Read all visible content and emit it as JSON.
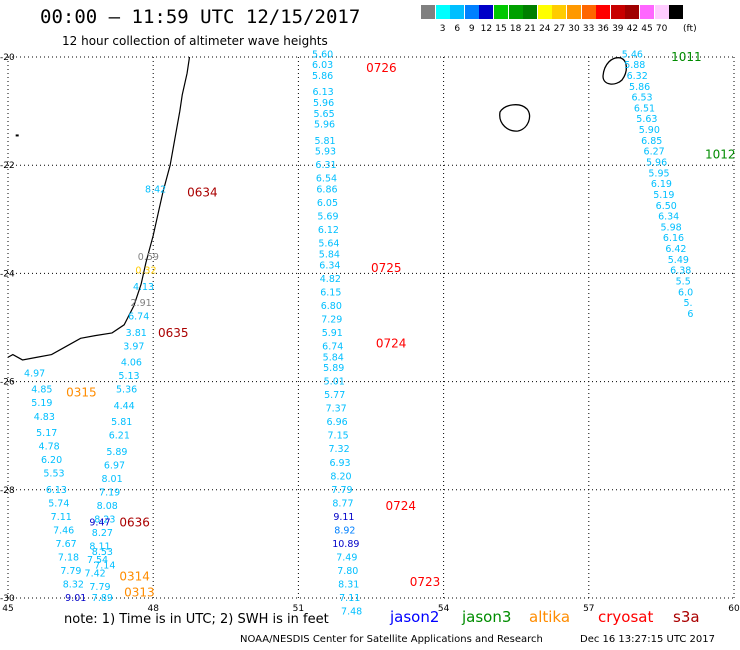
{
  "header": {
    "title": "00:00 – 11:59 UTC 12/15/2017",
    "subtitle": "12 hour collection of altimeter wave heights"
  },
  "color_scale": {
    "unit_label": "(ft)",
    "bins": [
      {
        "label": "",
        "color": "#808080"
      },
      {
        "label": "3",
        "color": "#00ffff"
      },
      {
        "label": "6",
        "color": "#00bfff"
      },
      {
        "label": "9",
        "color": "#0080ff"
      },
      {
        "label": "12",
        "color": "#0000c8"
      },
      {
        "label": "15",
        "color": "#00c800"
      },
      {
        "label": "18",
        "color": "#00a000"
      },
      {
        "label": "21",
        "color": "#008000"
      },
      {
        "label": "24",
        "color": "#ffff00"
      },
      {
        "label": "27",
        "color": "#ffcc00"
      },
      {
        "label": "30",
        "color": "#ff9900"
      },
      {
        "label": "33",
        "color": "#ff6600"
      },
      {
        "label": "36",
        "color": "#ff0000"
      },
      {
        "label": "39",
        "color": "#c80000"
      },
      {
        "label": "42",
        "color": "#a00000"
      },
      {
        "label": "45",
        "color": "#ff66ff"
      },
      {
        "label": "70",
        "color": "#ffccff"
      },
      {
        "label": "",
        "color": "#000000"
      }
    ]
  },
  "axes": {
    "lon_ticks": [
      "45",
      "48",
      "51",
      "54",
      "57",
      "60"
    ],
    "lat_ticks": [
      "-20",
      "-22",
      "-24",
      "-26",
      "-28",
      "-30"
    ]
  },
  "passes": [
    {
      "label": "0634",
      "color": "#aa0000",
      "lon": 48.7,
      "lat": -22.5
    },
    {
      "label": "0635",
      "color": "#aa0000",
      "lon": 48.1,
      "lat": -25.1
    },
    {
      "label": "0636",
      "color": "#aa0000",
      "lon": 47.3,
      "lat": -28.6
    },
    {
      "label": "0315",
      "color": "#ff8c00",
      "lon": 46.2,
      "lat": -26.2
    },
    {
      "label": "0314",
      "color": "#ff8c00",
      "lon": 47.3,
      "lat": -29.6
    },
    {
      "label": "0313",
      "color": "#ff8c00",
      "lon": 47.4,
      "lat": -29.9
    },
    {
      "label": "0726",
      "color": "#ff0000",
      "lon": 52.4,
      "lat": -20.2
    },
    {
      "label": "0725",
      "color": "#ff0000",
      "lon": 52.5,
      "lat": -23.9
    },
    {
      "label": "0724",
      "color": "#ff0000",
      "lon": 52.6,
      "lat": -25.3
    },
    {
      "label": "0724",
      "color": "#ff0000",
      "lon": 52.8,
      "lat": -28.3
    },
    {
      "label": "0723",
      "color": "#ff0000",
      "lon": 53.3,
      "lat": -29.7
    },
    {
      "label": "1011",
      "color": "#008c00",
      "lon": 58.7,
      "lat": -20.0
    },
    {
      "label": "1012",
      "color": "#008c00",
      "lon": 59.4,
      "lat": -21.8
    }
  ],
  "tracks": [
    {
      "name": "cryosat-0725",
      "points": [
        {
          "lon": 51.5,
          "lat": -19.95,
          "v": "5.60",
          "c": "#00bfff"
        },
        {
          "lon": 51.5,
          "lat": -20.15,
          "v": "6.03",
          "c": "#00bfff"
        },
        {
          "lon": 51.5,
          "lat": -20.35,
          "v": "5.86",
          "c": "#00bfff"
        },
        {
          "lon": 51.51,
          "lat": -20.65,
          "v": "6.13",
          "c": "#00bfff"
        },
        {
          "lon": 51.52,
          "lat": -20.85,
          "v": "5.96",
          "c": "#00bfff"
        },
        {
          "lon": 51.53,
          "lat": -21.05,
          "v": "5.65",
          "c": "#00bfff"
        },
        {
          "lon": 51.54,
          "lat": -21.25,
          "v": "5.96",
          "c": "#00bfff"
        },
        {
          "lon": 51.55,
          "lat": -21.55,
          "v": "5.81",
          "c": "#00bfff"
        },
        {
          "lon": 51.56,
          "lat": -21.75,
          "v": "5.93",
          "c": "#00bfff"
        },
        {
          "lon": 51.57,
          "lat": -22.0,
          "v": "6.31",
          "c": "#00bfff"
        },
        {
          "lon": 51.58,
          "lat": -22.25,
          "v": "6.54",
          "c": "#00bfff"
        },
        {
          "lon": 51.59,
          "lat": -22.45,
          "v": "6.86",
          "c": "#00bfff"
        },
        {
          "lon": 51.6,
          "lat": -22.7,
          "v": "6.05",
          "c": "#00bfff"
        },
        {
          "lon": 51.61,
          "lat": -22.95,
          "v": "5.69",
          "c": "#00bfff"
        },
        {
          "lon": 51.62,
          "lat": -23.2,
          "v": "6.12",
          "c": "#00bfff"
        },
        {
          "lon": 51.63,
          "lat": -23.45,
          "v": "5.64",
          "c": "#00bfff"
        },
        {
          "lon": 51.64,
          "lat": -23.65,
          "v": "5.84",
          "c": "#00bfff"
        },
        {
          "lon": 51.65,
          "lat": -23.85,
          "v": "6.34",
          "c": "#00bfff"
        },
        {
          "lon": 51.66,
          "lat": -24.1,
          "v": "4.82",
          "c": "#00bfff"
        },
        {
          "lon": 51.67,
          "lat": -24.35,
          "v": "6.15",
          "c": "#00bfff"
        },
        {
          "lon": 51.68,
          "lat": -24.6,
          "v": "6.80",
          "c": "#00bfff"
        },
        {
          "lon": 51.69,
          "lat": -24.85,
          "v": "7.29",
          "c": "#00bfff"
        },
        {
          "lon": 51.7,
          "lat": -25.1,
          "v": "5.91",
          "c": "#00bfff"
        },
        {
          "lon": 51.71,
          "lat": -25.35,
          "v": "6.74",
          "c": "#00bfff"
        },
        {
          "lon": 51.72,
          "lat": -25.55,
          "v": "5.84",
          "c": "#00bfff"
        },
        {
          "lon": 51.73,
          "lat": -25.75,
          "v": "5.89",
          "c": "#00bfff"
        },
        {
          "lon": 51.74,
          "lat": -26.0,
          "v": "5.01",
          "c": "#00bfff"
        }
      ]
    },
    {
      "name": "cryosat-0724",
      "points": [
        {
          "lon": 51.75,
          "lat": -26.25,
          "v": "5.77",
          "c": "#00bfff"
        },
        {
          "lon": 51.78,
          "lat": -26.5,
          "v": "7.37",
          "c": "#00bfff"
        },
        {
          "lon": 51.8,
          "lat": -26.75,
          "v": "6.96",
          "c": "#00bfff"
        },
        {
          "lon": 51.82,
          "lat": -27.0,
          "v": "7.15",
          "c": "#00bfff"
        },
        {
          "lon": 51.84,
          "lat": -27.25,
          "v": "7.32",
          "c": "#00bfff"
        },
        {
          "lon": 51.86,
          "lat": -27.5,
          "v": "6.93",
          "c": "#00bfff"
        },
        {
          "lon": 51.88,
          "lat": -27.75,
          "v": "8.20",
          "c": "#00bfff"
        },
        {
          "lon": 51.9,
          "lat": -28.0,
          "v": "7.79",
          "c": "#00bfff"
        },
        {
          "lon": 51.92,
          "lat": -28.25,
          "v": "8.77",
          "c": "#00bfff"
        },
        {
          "lon": 51.94,
          "lat": -28.5,
          "v": "9.11",
          "c": "#0000c8"
        },
        {
          "lon": 51.96,
          "lat": -28.75,
          "v": "8.92",
          "c": "#0080ff"
        },
        {
          "lon": 51.98,
          "lat": -29.0,
          "v": "10.89",
          "c": "#0000c8"
        },
        {
          "lon": 52.0,
          "lat": -29.25,
          "v": "7.49",
          "c": "#00bfff"
        },
        {
          "lon": 52.02,
          "lat": -29.5,
          "v": "7.80",
          "c": "#00bfff"
        },
        {
          "lon": 52.04,
          "lat": -29.75,
          "v": "8.31",
          "c": "#00bfff"
        },
        {
          "lon": 52.06,
          "lat": -30.0,
          "v": "7.11",
          "c": "#00bfff"
        },
        {
          "lon": 52.1,
          "lat": -30.25,
          "v": "7.48",
          "c": "#00bfff"
        }
      ]
    },
    {
      "name": "jason3-1011",
      "points": [
        {
          "lon": 57.9,
          "lat": -19.95,
          "v": "5.46",
          "c": "#00bfff"
        },
        {
          "lon": 57.95,
          "lat": -20.15,
          "v": "5.88",
          "c": "#00bfff"
        },
        {
          "lon": 58.0,
          "lat": -20.35,
          "v": "6.32",
          "c": "#00bfff"
        },
        {
          "lon": 58.05,
          "lat": -20.55,
          "v": "5.86",
          "c": "#00bfff"
        },
        {
          "lon": 58.1,
          "lat": -20.75,
          "v": "6.53",
          "c": "#00bfff"
        },
        {
          "lon": 58.15,
          "lat": -20.95,
          "v": "6.51",
          "c": "#00bfff"
        },
        {
          "lon": 58.2,
          "lat": -21.15,
          "v": "5.63",
          "c": "#00bfff"
        },
        {
          "lon": 58.25,
          "lat": -21.35,
          "v": "5.90",
          "c": "#00bfff"
        },
        {
          "lon": 58.3,
          "lat": -21.55,
          "v": "6.85",
          "c": "#00bfff"
        },
        {
          "lon": 58.35,
          "lat": -21.75,
          "v": "6.27",
          "c": "#00bfff"
        },
        {
          "lon": 58.4,
          "lat": -21.95,
          "v": "5.96",
          "c": "#00bfff"
        },
        {
          "lon": 58.45,
          "lat": -22.15,
          "v": "5.95",
          "c": "#00bfff"
        },
        {
          "lon": 58.5,
          "lat": -22.35,
          "v": "6.19",
          "c": "#00bfff"
        },
        {
          "lon": 58.55,
          "lat": -22.55,
          "v": "5.19",
          "c": "#00bfff"
        },
        {
          "lon": 58.6,
          "lat": -22.75,
          "v": "6.50",
          "c": "#00bfff"
        },
        {
          "lon": 58.65,
          "lat": -22.95,
          "v": "6.34",
          "c": "#00bfff"
        },
        {
          "lon": 58.7,
          "lat": -23.15,
          "v": "5.98",
          "c": "#00bfff"
        },
        {
          "lon": 58.75,
          "lat": -23.35,
          "v": "6.16",
          "c": "#00bfff"
        },
        {
          "lon": 58.8,
          "lat": -23.55,
          "v": "6.42",
          "c": "#00bfff"
        },
        {
          "lon": 58.85,
          "lat": -23.75,
          "v": "5.49",
          "c": "#00bfff"
        },
        {
          "lon": 58.9,
          "lat": -23.95,
          "v": "6.38",
          "c": "#00bfff"
        },
        {
          "lon": 58.95,
          "lat": -24.15,
          "v": "5.5",
          "c": "#00bfff"
        },
        {
          "lon": 59.0,
          "lat": -24.35,
          "v": "6.0",
          "c": "#00bfff"
        },
        {
          "lon": 59.05,
          "lat": -24.55,
          "v": "5.",
          "c": "#00bfff"
        },
        {
          "lon": 59.1,
          "lat": -24.75,
          "v": "6",
          "c": "#00bfff"
        }
      ]
    },
    {
      "name": "s3a-0634",
      "points": [
        {
          "lon": 48.05,
          "lat": -22.45,
          "v": "8.42",
          "c": "#00bfff"
        },
        {
          "lon": 47.9,
          "lat": -23.7,
          "v": "0.59",
          "c": "#808080"
        },
        {
          "lon": 47.85,
          "lat": -23.95,
          "v": "0.32",
          "c": "#ffcc00"
        }
      ]
    },
    {
      "name": "s3a-0635",
      "points": [
        {
          "lon": 47.8,
          "lat": -24.25,
          "v": "4.13",
          "c": "#00bfff"
        },
        {
          "lon": 47.75,
          "lat": -24.55,
          "v": "2.91",
          "c": "#808080"
        },
        {
          "lon": 47.7,
          "lat": -24.8,
          "v": "6.74",
          "c": "#00bfff"
        },
        {
          "lon": 47.65,
          "lat": -25.1,
          "v": "3.81",
          "c": "#00bfff"
        },
        {
          "lon": 47.6,
          "lat": -25.35,
          "v": "3.97",
          "c": "#00bfff"
        },
        {
          "lon": 47.55,
          "lat": -25.65,
          "v": "4.06",
          "c": "#00bfff"
        },
        {
          "lon": 47.5,
          "lat": -25.9,
          "v": "5.13",
          "c": "#00bfff"
        },
        {
          "lon": 47.45,
          "lat": -26.15,
          "v": "5.36",
          "c": "#00bfff"
        }
      ]
    },
    {
      "name": "s3a-0636",
      "points": [
        {
          "lon": 47.4,
          "lat": -26.45,
          "v": "4.44",
          "c": "#00bfff"
        },
        {
          "lon": 47.35,
          "lat": -26.75,
          "v": "5.81",
          "c": "#00bfff"
        },
        {
          "lon": 47.3,
          "lat": -27.0,
          "v": "6.21",
          "c": "#00bfff"
        },
        {
          "lon": 47.25,
          "lat": -27.3,
          "v": "5.89",
          "c": "#00bfff"
        },
        {
          "lon": 47.2,
          "lat": -27.55,
          "v": "6.97",
          "c": "#00bfff"
        },
        {
          "lon": 47.15,
          "lat": -27.8,
          "v": "8.01",
          "c": "#00bfff"
        },
        {
          "lon": 47.1,
          "lat": -28.05,
          "v": "7.19",
          "c": "#00bfff"
        },
        {
          "lon": 47.05,
          "lat": -28.3,
          "v": "8.08",
          "c": "#00bfff"
        },
        {
          "lon": 47.0,
          "lat": -28.55,
          "v": "8.23",
          "c": "#00bfff"
        },
        {
          "lon": 46.95,
          "lat": -28.8,
          "v": "8.27",
          "c": "#00bfff"
        },
        {
          "lon": 46.9,
          "lat": -29.05,
          "v": "8.11",
          "c": "#00bfff"
        },
        {
          "lon": 46.85,
          "lat": -29.3,
          "v": "7.54",
          "c": "#00bfff"
        },
        {
          "lon": 46.8,
          "lat": -29.55,
          "v": "7.42",
          "c": "#00bfff"
        },
        {
          "lon": 46.9,
          "lat": -29.8,
          "v": "7.79",
          "c": "#00bfff"
        },
        {
          "lon": 46.95,
          "lat": -30.0,
          "v": "7.89",
          "c": "#00bfff"
        }
      ]
    },
    {
      "name": "altika-0315",
      "points": [
        {
          "lon": 45.55,
          "lat": -25.85,
          "v": "4.97",
          "c": "#00bfff"
        },
        {
          "lon": 45.7,
          "lat": -26.15,
          "v": "4.85",
          "c": "#00bfff"
        },
        {
          "lon": 45.7,
          "lat": -26.4,
          "v": "5.19",
          "c": "#00bfff"
        },
        {
          "lon": 45.75,
          "lat": -26.65,
          "v": "4.83",
          "c": "#00bfff"
        },
        {
          "lon": 45.8,
          "lat": -26.95,
          "v": "5.17",
          "c": "#00bfff"
        },
        {
          "lon": 45.85,
          "lat": -27.2,
          "v": "4.78",
          "c": "#00bfff"
        },
        {
          "lon": 45.9,
          "lat": -27.45,
          "v": "6.20",
          "c": "#00bfff"
        },
        {
          "lon": 45.95,
          "lat": -27.7,
          "v": "5.53",
          "c": "#00bfff"
        },
        {
          "lon": 46.0,
          "lat": -28.0,
          "v": "6.13",
          "c": "#00bfff"
        },
        {
          "lon": 46.05,
          "lat": -28.25,
          "v": "5.74",
          "c": "#00bfff"
        },
        {
          "lon": 46.1,
          "lat": -28.5,
          "v": "7.11",
          "c": "#00bfff"
        },
        {
          "lon": 46.15,
          "lat": -28.75,
          "v": "7.46",
          "c": "#00bfff"
        },
        {
          "lon": 46.2,
          "lat": -29.0,
          "v": "7.67",
          "c": "#00bfff"
        },
        {
          "lon": 46.25,
          "lat": -29.25,
          "v": "7.18",
          "c": "#00bfff"
        },
        {
          "lon": 46.3,
          "lat": -29.5,
          "v": "7.79",
          "c": "#00bfff"
        },
        {
          "lon": 46.35,
          "lat": -29.75,
          "v": "8.32",
          "c": "#00bfff"
        },
        {
          "lon": 46.4,
          "lat": -30.0,
          "v": "9.01",
          "c": "#0000c8"
        }
      ]
    },
    {
      "name": "jason2-0636-inset",
      "points": [
        {
          "lon": 46.9,
          "lat": -28.6,
          "v": "9.47",
          "c": "#0000c8"
        },
        {
          "lon": 46.95,
          "lat": -29.15,
          "v": "8.53",
          "c": "#00bfff"
        },
        {
          "lon": 47.0,
          "lat": -29.4,
          "v": "7.14",
          "c": "#00bfff"
        }
      ]
    }
  ],
  "footer": {
    "note": "note: 1) Time is in UTC; 2) SWH is in feet",
    "legend": {
      "jason2": "jason2",
      "jason3": "jason3",
      "altika": "altika",
      "cryosat": "cryosat",
      "s3a": "s3a"
    },
    "credit": "NOAA/NESDIS Center for Satellite Applications and Research",
    "timestamp": "Dec 16 13:27:15 UTC 2017"
  }
}
